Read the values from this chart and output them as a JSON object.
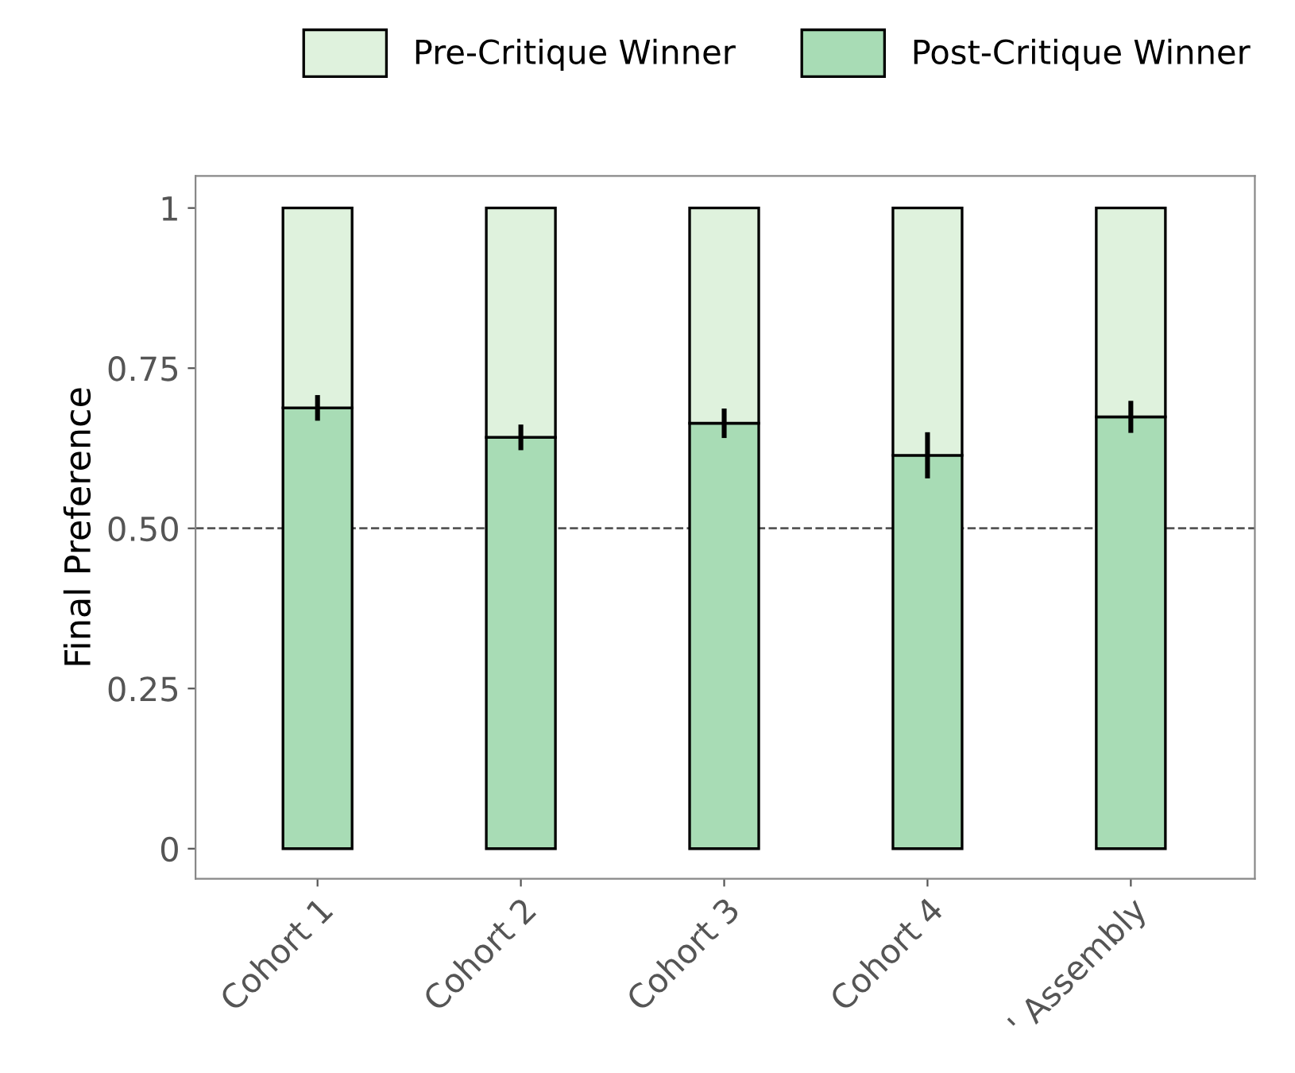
{
  "chart_data": {
    "type": "bar",
    "stacked": true,
    "ylabel": "Final Preference",
    "categories": [
      "Cohort 1",
      "Cohort 2",
      "Cohort 3",
      "Cohort 4",
      "' Assembly"
    ],
    "series": [
      {
        "name": "Post-Critique Winner",
        "color": "#a8dcb5",
        "values": [
          0.688,
          0.642,
          0.664,
          0.614,
          0.674
        ],
        "errors": [
          0.02,
          0.02,
          0.023,
          0.036,
          0.025
        ]
      },
      {
        "name": "Pre-Critique Winner",
        "color": "#dff2dd",
        "values": [
          0.312,
          0.358,
          0.336,
          0.386,
          0.326
        ]
      }
    ],
    "ylim": [
      -0.047,
      1.05
    ],
    "yticks": [
      0,
      0.25,
      {
        "value": 0.5,
        "label": "0.50"
      },
      0.75,
      1
    ],
    "ref_lines": [
      {
        "axis": "y",
        "value": 0.5,
        "color": "#555555",
        "line_style": "dashed"
      }
    ],
    "legend": "top",
    "grid": false
  }
}
